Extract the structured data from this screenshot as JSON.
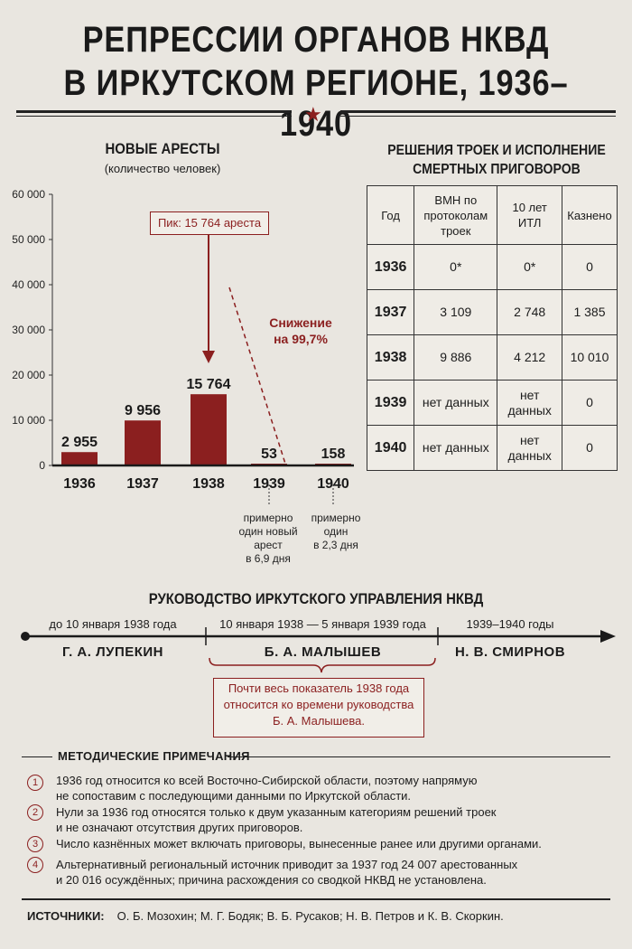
{
  "title": {
    "line1": "РЕПРЕССИИ ОРГАНОВ НКВД",
    "line2": "В ИРКУТСКОМ РЕГИОНЕ, 1936–1940"
  },
  "arrests": {
    "heading": "НОВЫЕ АРЕСТЫ",
    "subheading": "(количество человек)",
    "peak_label": "Пик: 15 764 ареста",
    "decline_label_1": "Снижение",
    "decline_label_2": "на 99,7%",
    "notes": [
      {
        "lines": [
          "примерно",
          "один новый",
          "арест",
          "в 6,9 дня"
        ]
      },
      {
        "lines": [
          "примерно",
          "один",
          "в 2,3 дня"
        ]
      }
    ]
  },
  "chart_data": {
    "type": "bar",
    "categories": [
      "1936",
      "1937",
      "1938",
      "1939",
      "1940"
    ],
    "values": [
      2955,
      9956,
      15764,
      53,
      158
    ],
    "value_labels": [
      "2 955",
      "9 956",
      "15 764",
      "53",
      "158"
    ],
    "title": "НОВЫЕ АРЕСТЫ",
    "subtitle": "(количество человек)",
    "ylim": [
      0,
      60000
    ],
    "yticks": [
      0,
      10000,
      20000,
      30000,
      40000,
      50000,
      60000
    ],
    "ytick_labels": [
      "0",
      "10 000",
      "20 000",
      "30 000",
      "40 000",
      "50 000",
      "60 000"
    ],
    "color": "#8b1f1f",
    "grid": false
  },
  "table": {
    "heading_1": "РЕШЕНИЯ ТРОЕК И ИСПОЛНЕНИЕ",
    "heading_2": "СМЕРТНЫХ ПРИГОВОРОВ",
    "columns": [
      "Год",
      "ВМН по протоколам троек",
      "10 лет ИТЛ",
      "Казнено"
    ],
    "rows": [
      [
        "1936",
        "0*",
        "0*",
        "0"
      ],
      [
        "1937",
        "3 109",
        "2 748",
        "1 385"
      ],
      [
        "1938",
        "9 886",
        "4 212",
        "10 010"
      ],
      [
        "1939",
        "нет данных",
        "нет данных",
        "0"
      ],
      [
        "1940",
        "нет данных",
        "нет данных",
        "0"
      ]
    ]
  },
  "leadership": {
    "heading": "РУКОВОДСТВО ИРКУТСКОГО УПРАВЛЕНИЯ НКВД",
    "periods": [
      {
        "dates": "до 10 января 1938 года",
        "name": "Г. А. ЛУПЕКИН"
      },
      {
        "dates": "10 января 1938 — 5 января 1939 года",
        "name": "Б. А. МАЛЫШЕВ"
      },
      {
        "dates": "1939–1940 годы",
        "name": "Н. В. СМИРНОВ"
      }
    ],
    "callout_1": "Почти весь показатель 1938 года",
    "callout_2": "относится ко времени руководства",
    "callout_3": "Б. А. Малышева."
  },
  "notes": {
    "heading": "МЕТОДИЧЕСКИЕ ПРИМЕЧАНИЯ",
    "items": [
      {
        "num": "1",
        "line1": "1936 год относится ко всей Восточно-Сибирской области, поэтому напрямую",
        "line2": "не сопоставим с последующими данными по Иркутской области."
      },
      {
        "num": "2",
        "line1": "Нули за 1936 год относятся только к двум указанным категориям решений троек",
        "line2": "и не означают отсутствия других приговоров."
      },
      {
        "num": "3",
        "line1": "Число казнённых может включать приговоры, вынесенные ранее или другими органами.",
        "line2": ""
      },
      {
        "num": "4",
        "line1": "Альтернативный региональный источник приводит за 1937 год 24 007 арестованных",
        "line2": "и 20 016 осуждённых; причина расхождения со сводкой НКВД не установлена."
      }
    ]
  },
  "sources": {
    "label": "ИСТОЧНИКИ:",
    "text": "О. Б. Мозохин; М. Г. Бодяк; В. Б. Русаков; Н. В. Петров и К. В. Скоркин."
  }
}
